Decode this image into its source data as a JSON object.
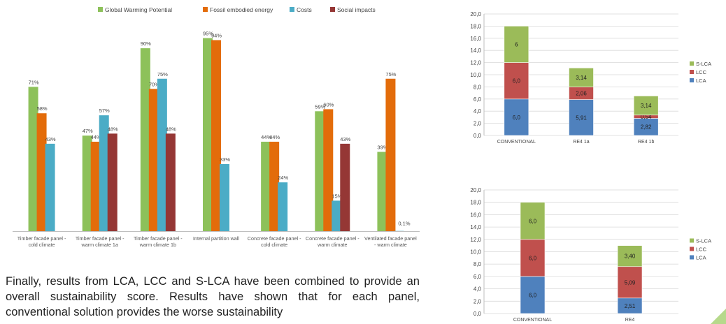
{
  "chart_data": [
    {
      "type": "bar",
      "categories": [
        [
          "Timber facade panel -",
          "cold climate"
        ],
        [
          "Timber facade panel -",
          "warm climate 1a"
        ],
        [
          "Timber facade panel -",
          "warm climate 1b"
        ],
        [
          "Internal partition wall"
        ],
        [
          "Concrete facade panel -",
          "cold climate"
        ],
        [
          "Concrete facade panel -",
          "warm climate"
        ],
        [
          "Ventilated facade panel",
          "- warm climate"
        ]
      ],
      "series": [
        {
          "name": "Global Warming Potential",
          "color": "#8dc15a",
          "values": [
            71,
            47,
            90,
            95,
            44,
            59,
            39
          ],
          "labels": [
            "71%",
            "47%",
            "90%",
            "95%",
            "44%",
            "59%",
            "39%"
          ]
        },
        {
          "name": "Fossil embodied energy",
          "color": "#e36c0a",
          "values": [
            58,
            44,
            70,
            94,
            44,
            60,
            75
          ],
          "labels": [
            "58%",
            "44%",
            "70%",
            "94%",
            "44%",
            "60%",
            "75%"
          ]
        },
        {
          "name": "Costs",
          "color": "#4bacc6",
          "values": [
            43,
            57,
            75,
            33,
            24,
            15,
            0.1
          ],
          "labels": [
            "43%",
            "57%",
            "75%",
            "33%",
            "24%",
            "15%",
            "0,1%"
          ]
        },
        {
          "name": "Social impacts",
          "color": "#953735",
          "values": [
            null,
            48,
            48,
            null,
            null,
            43,
            null
          ],
          "labels": [
            null,
            "48%",
            "48%",
            null,
            null,
            "43%",
            null
          ]
        }
      ],
      "ylim": [
        0,
        100
      ],
      "legend": "top",
      "grid": false
    },
    {
      "type": "bar",
      "stacked": true,
      "categories": [
        "CONVENTIONAL",
        "RE4 1a",
        "RE4 1b"
      ],
      "series": [
        {
          "name": "LCA",
          "color": "#4f81bd",
          "values": [
            6.0,
            5.91,
            2.82
          ],
          "labels": [
            "6,0",
            "5,91",
            "2,82"
          ]
        },
        {
          "name": "LCC",
          "color": "#c0504d",
          "values": [
            6.0,
            2.06,
            0.54
          ],
          "labels": [
            "6,0",
            "2,06",
            "0,54"
          ]
        },
        {
          "name": "S-LCA",
          "color": "#9bbb59",
          "values": [
            6.0,
            3.14,
            3.14
          ],
          "labels": [
            "6",
            "3,14",
            "3,14"
          ]
        }
      ],
      "yticks": [
        "0,0",
        "2,0",
        "4,0",
        "6,0",
        "8,0",
        "10,0",
        "12,0",
        "14,0",
        "16,0",
        "18,0",
        "20,0"
      ],
      "ylim": [
        0,
        20
      ],
      "legend": "right",
      "grid": true
    },
    {
      "type": "bar",
      "stacked": true,
      "categories": [
        "CONVENTIONAL",
        "RE4"
      ],
      "series": [
        {
          "name": "LCA",
          "color": "#4f81bd",
          "values": [
            6.0,
            2.51
          ],
          "labels": [
            "6,0",
            "2,51"
          ]
        },
        {
          "name": "LCC",
          "color": "#c0504d",
          "values": [
            6.0,
            5.09
          ],
          "labels": [
            "6,0",
            "5,09"
          ]
        },
        {
          "name": "S-LCA",
          "color": "#9bbb59",
          "values": [
            6.0,
            3.4
          ],
          "labels": [
            "6,0",
            "3,40"
          ]
        }
      ],
      "yticks": [
        "0,0",
        "2,0",
        "4,0",
        "6,0",
        "8,0",
        "10,0",
        "12,0",
        "14,0",
        "16,0",
        "18,0",
        "20,0"
      ],
      "ylim": [
        0,
        20
      ],
      "legend": "right",
      "grid": true
    }
  ],
  "paragraph": "Finally, results from LCA, LCC and S-LCA have been combined to provide an overall sustainability score. Results have shown that for each panel, conventional solution provides the worse sustainability"
}
